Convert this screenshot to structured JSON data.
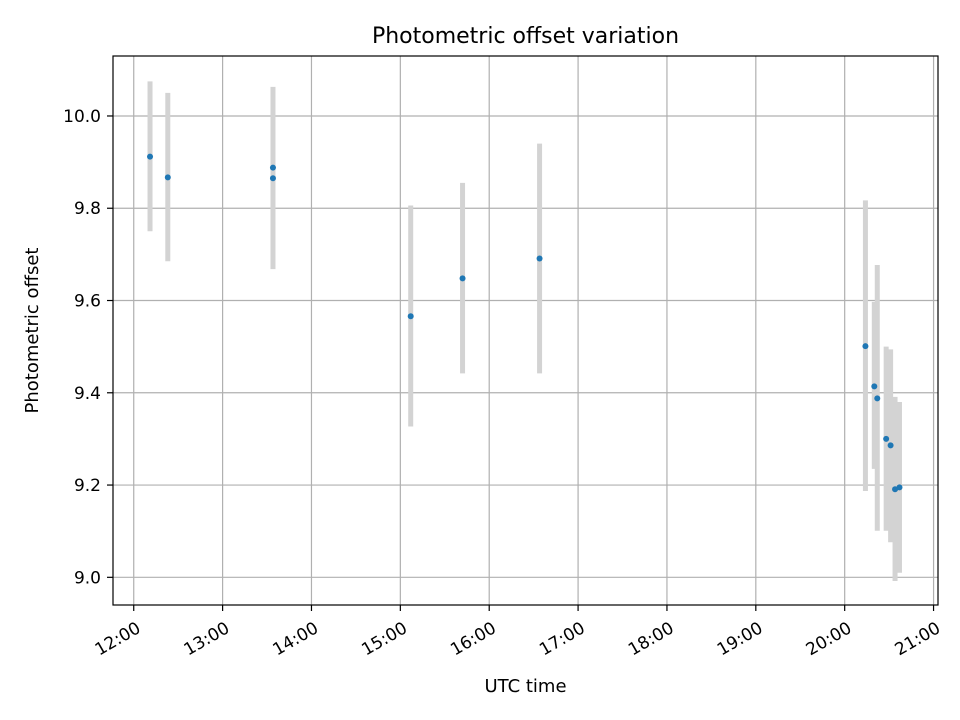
{
  "chart_data": {
    "type": "scatter",
    "title": "Photometric offset variation",
    "xlabel": "UTC time",
    "ylabel": "Photometric offset",
    "x_ticks": [
      "12:00",
      "13:00",
      "14:00",
      "15:00",
      "16:00",
      "17:00",
      "18:00",
      "19:00",
      "20:00",
      "21:00"
    ],
    "y_ticks": [
      "9.0",
      "9.2",
      "9.4",
      "9.6",
      "9.8",
      "10.0"
    ],
    "xlim": [
      "11:46",
      "21:03"
    ],
    "ylim": [
      8.94,
      10.13
    ],
    "grid": true,
    "marker_color": "#1f77b4",
    "errorbar_color": "#d3d3d3",
    "points": [
      {
        "x": "12:11",
        "y": 9.912,
        "yerr_low": 9.75,
        "yerr_high": 10.075
      },
      {
        "x": "12:23",
        "y": 9.867,
        "yerr_low": 9.685,
        "yerr_high": 10.05
      },
      {
        "x": "13:34",
        "y": 9.888,
        "yerr_low": 9.888,
        "yerr_high": 9.888
      },
      {
        "x": "13:34",
        "y": 9.865,
        "yerr_low": 9.668,
        "yerr_high": 10.063
      },
      {
        "x": "15:07",
        "y": 9.566,
        "yerr_low": 9.327,
        "yerr_high": 9.806
      },
      {
        "x": "15:42",
        "y": 9.648,
        "yerr_low": 9.442,
        "yerr_high": 9.855
      },
      {
        "x": "16:34",
        "y": 9.691,
        "yerr_low": 9.442,
        "yerr_high": 9.94
      },
      {
        "x": "20:14",
        "y": 9.501,
        "yerr_low": 9.187,
        "yerr_high": 9.817
      },
      {
        "x": "20:20",
        "y": 9.414,
        "yerr_low": 9.235,
        "yerr_high": 9.597
      },
      {
        "x": "20:22",
        "y": 9.388,
        "yerr_low": 9.101,
        "yerr_high": 9.677
      },
      {
        "x": "20:28",
        "y": 9.3,
        "yerr_low": 9.101,
        "yerr_high": 9.5
      },
      {
        "x": "20:31",
        "y": 9.286,
        "yerr_low": 9.076,
        "yerr_high": 9.494
      },
      {
        "x": "20:34",
        "y": 9.191,
        "yerr_low": 8.992,
        "yerr_high": 9.391
      },
      {
        "x": "20:37",
        "y": 9.195,
        "yerr_low": 9.01,
        "yerr_high": 9.38
      }
    ]
  }
}
